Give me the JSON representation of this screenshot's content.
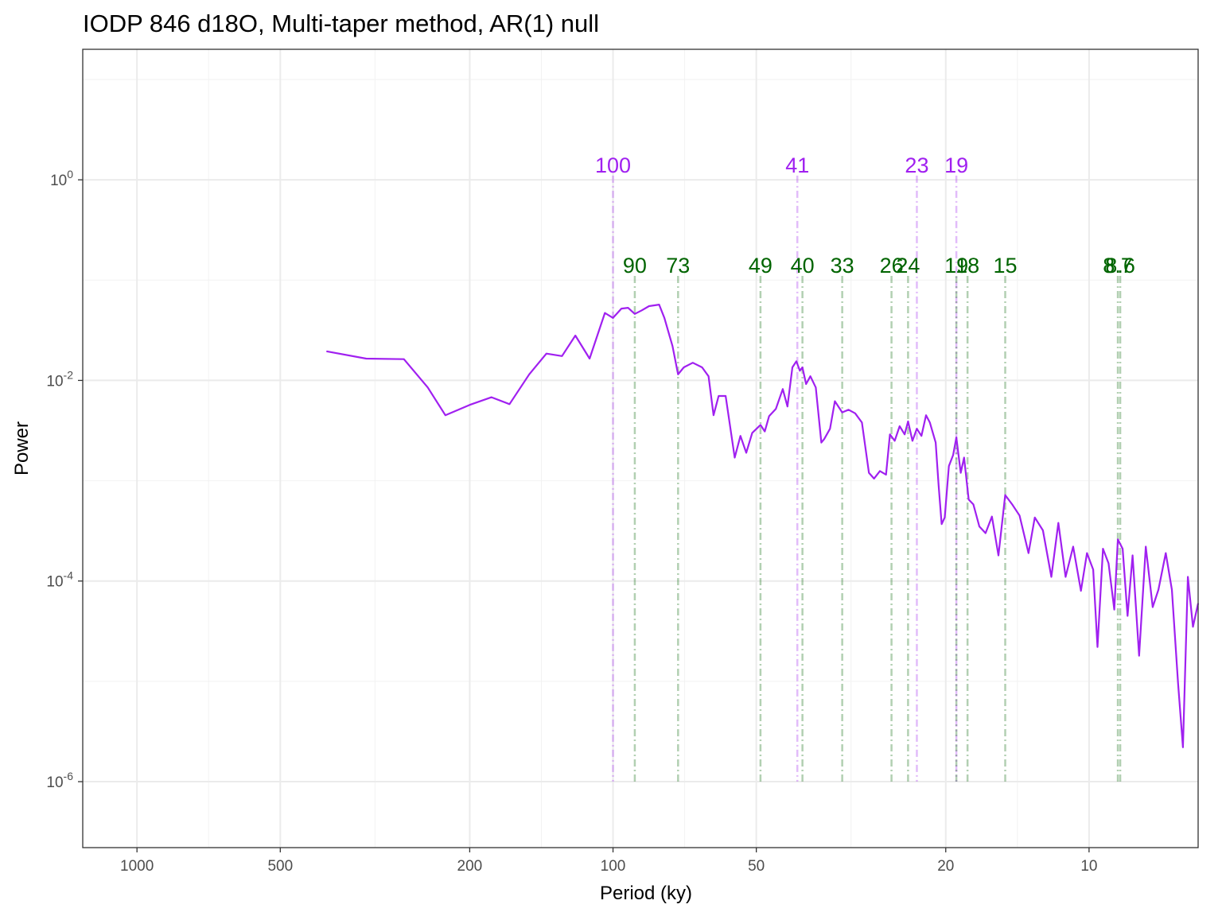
{
  "chart_data": {
    "type": "line",
    "title": "IODP 846 d18O, Multi-taper method, AR(1) null",
    "xlabel": "Period (ky)",
    "ylabel": "Power",
    "x_scale": "log-reversed",
    "y_scale": "log10",
    "xlim": [
      1300,
      5.9
    ],
    "ylim": [
      2.2e-07,
      20
    ],
    "grid": true,
    "x_ticks": [
      {
        "value": 1000,
        "label": "1000"
      },
      {
        "value": 500,
        "label": "500"
      },
      {
        "value": 200,
        "label": "200"
      },
      {
        "value": 100,
        "label": "100"
      },
      {
        "value": 50,
        "label": "50"
      },
      {
        "value": 20,
        "label": "20"
      },
      {
        "value": 10,
        "label": "10"
      }
    ],
    "y_ticks": [
      {
        "value": 1,
        "base": "10",
        "exp": "0"
      },
      {
        "value": 0.01,
        "base": "10",
        "exp": "-2"
      },
      {
        "value": 0.0001,
        "base": "10",
        "exp": "-4"
      },
      {
        "value": 1e-06,
        "base": "10",
        "exp": "-6"
      }
    ],
    "series": [
      {
        "color": "#a020f0",
        "points": [
          [
            400,
            0.0195
          ],
          [
            330,
            0.0165
          ],
          [
            275,
            0.0163
          ],
          [
            245,
            0.0085
          ],
          [
            225,
            0.0045
          ],
          [
            200,
            0.0057
          ],
          [
            180,
            0.0068
          ],
          [
            165,
            0.0058
          ],
          [
            150,
            0.0115
          ],
          [
            138,
            0.0185
          ],
          [
            128,
            0.0175
          ],
          [
            120,
            0.028
          ],
          [
            112,
            0.0165
          ],
          [
            104,
            0.047
          ],
          [
            100,
            0.042
          ],
          [
            96,
            0.052
          ],
          [
            93,
            0.053
          ],
          [
            90,
            0.046
          ],
          [
            87,
            0.05
          ],
          [
            84,
            0.055
          ],
          [
            80,
            0.057
          ],
          [
            78,
            0.042
          ],
          [
            75,
            0.022
          ],
          [
            73,
            0.0115
          ],
          [
            71,
            0.0135
          ],
          [
            68,
            0.015
          ],
          [
            65,
            0.0135
          ],
          [
            63,
            0.011
          ],
          [
            61.5,
            0.0045
          ],
          [
            60,
            0.007
          ],
          [
            58,
            0.007
          ],
          [
            55.5,
            0.0017
          ],
          [
            54,
            0.0028
          ],
          [
            52.5,
            0.0019
          ],
          [
            51,
            0.003
          ],
          [
            49,
            0.0036
          ],
          [
            48,
            0.0031
          ],
          [
            47,
            0.0044
          ],
          [
            45.5,
            0.0052
          ],
          [
            44,
            0.0082
          ],
          [
            43,
            0.0055
          ],
          [
            42,
            0.0135
          ],
          [
            41.2,
            0.0155
          ],
          [
            40.5,
            0.0125
          ],
          [
            40,
            0.0135
          ],
          [
            39.3,
            0.0092
          ],
          [
            38.5,
            0.011
          ],
          [
            37.5,
            0.0085
          ],
          [
            36.5,
            0.0024
          ],
          [
            36,
            0.0026
          ],
          [
            35,
            0.0033
          ],
          [
            34.2,
            0.0062
          ],
          [
            33,
            0.0048
          ],
          [
            32,
            0.0051
          ],
          [
            31,
            0.0047
          ],
          [
            30,
            0.0038
          ],
          [
            29,
            0.0012
          ],
          [
            28.3,
            0.00105
          ],
          [
            27.5,
            0.00125
          ],
          [
            26.7,
            0.00115
          ],
          [
            26.2,
            0.0029
          ],
          [
            25.6,
            0.0025
          ],
          [
            25,
            0.0035
          ],
          [
            24.4,
            0.0029
          ],
          [
            24,
            0.0039
          ],
          [
            23.5,
            0.0025
          ],
          [
            23,
            0.0033
          ],
          [
            22.5,
            0.0028
          ],
          [
            22,
            0.0045
          ],
          [
            21.6,
            0.0038
          ],
          [
            21,
            0.0024
          ],
          [
            20.7,
            0.0009
          ],
          [
            20.4,
            0.00037
          ],
          [
            20.1,
            0.00043
          ],
          [
            19.7,
            0.0014
          ],
          [
            19.3,
            0.0018
          ],
          [
            19,
            0.0027
          ],
          [
            18.6,
            0.0012
          ],
          [
            18.3,
            0.0017
          ],
          [
            17.9,
            0.00065
          ],
          [
            17.5,
            0.00058
          ],
          [
            17,
            0.00035
          ],
          [
            16.5,
            0.0003
          ],
          [
            16,
            0.00044
          ],
          [
            15.5,
            0.00018
          ],
          [
            15,
            0.00072
          ],
          [
            14.5,
            0.00058
          ],
          [
            14,
            0.00045
          ],
          [
            13.4,
            0.00019
          ],
          [
            13,
            0.00043
          ],
          [
            12.5,
            0.00032
          ],
          [
            12,
            0.00011
          ],
          [
            11.6,
            0.00038
          ],
          [
            11.2,
            0.00011
          ],
          [
            10.8,
            0.00022
          ],
          [
            10.4,
            8e-05
          ],
          [
            10.1,
            0.00019
          ],
          [
            9.8,
            0.00013
          ],
          [
            9.6,
            2.2e-05
          ],
          [
            9.35,
            0.00021
          ],
          [
            9.1,
            0.00015
          ],
          [
            8.85,
            5.2e-05
          ],
          [
            8.7,
            0.00026
          ],
          [
            8.5,
            0.00021
          ],
          [
            8.3,
            4.5e-05
          ],
          [
            8.1,
            0.00018
          ],
          [
            7.85,
            1.8e-05
          ],
          [
            7.6,
            0.00022
          ],
          [
            7.35,
            5.5e-05
          ],
          [
            7.15,
            8.2e-05
          ],
          [
            6.9,
            0.00019
          ],
          [
            6.7,
            8.2e-05
          ],
          [
            6.5,
            9.5e-06
          ],
          [
            6.35,
            2.2e-06
          ],
          [
            6.2,
            0.00011
          ],
          [
            6.05,
            3.5e-05
          ],
          [
            5.9,
            6e-05
          ]
        ]
      }
    ],
    "peak_groups": [
      {
        "color": "#a020f0",
        "label_power": 1.1,
        "periods": [
          100,
          41,
          23,
          19
        ],
        "labels": [
          "100",
          "41",
          "23",
          "19"
        ]
      },
      {
        "color": "#006400",
        "label_power": 0.11,
        "periods": [
          90,
          73,
          49,
          40,
          33,
          26,
          24,
          19,
          18,
          15,
          8.7,
          8.6
        ],
        "labels": [
          "90",
          "73",
          "49",
          "40",
          "33",
          "26",
          "24",
          "19",
          "18",
          "15",
          "8.7",
          "8.6"
        ]
      }
    ]
  }
}
